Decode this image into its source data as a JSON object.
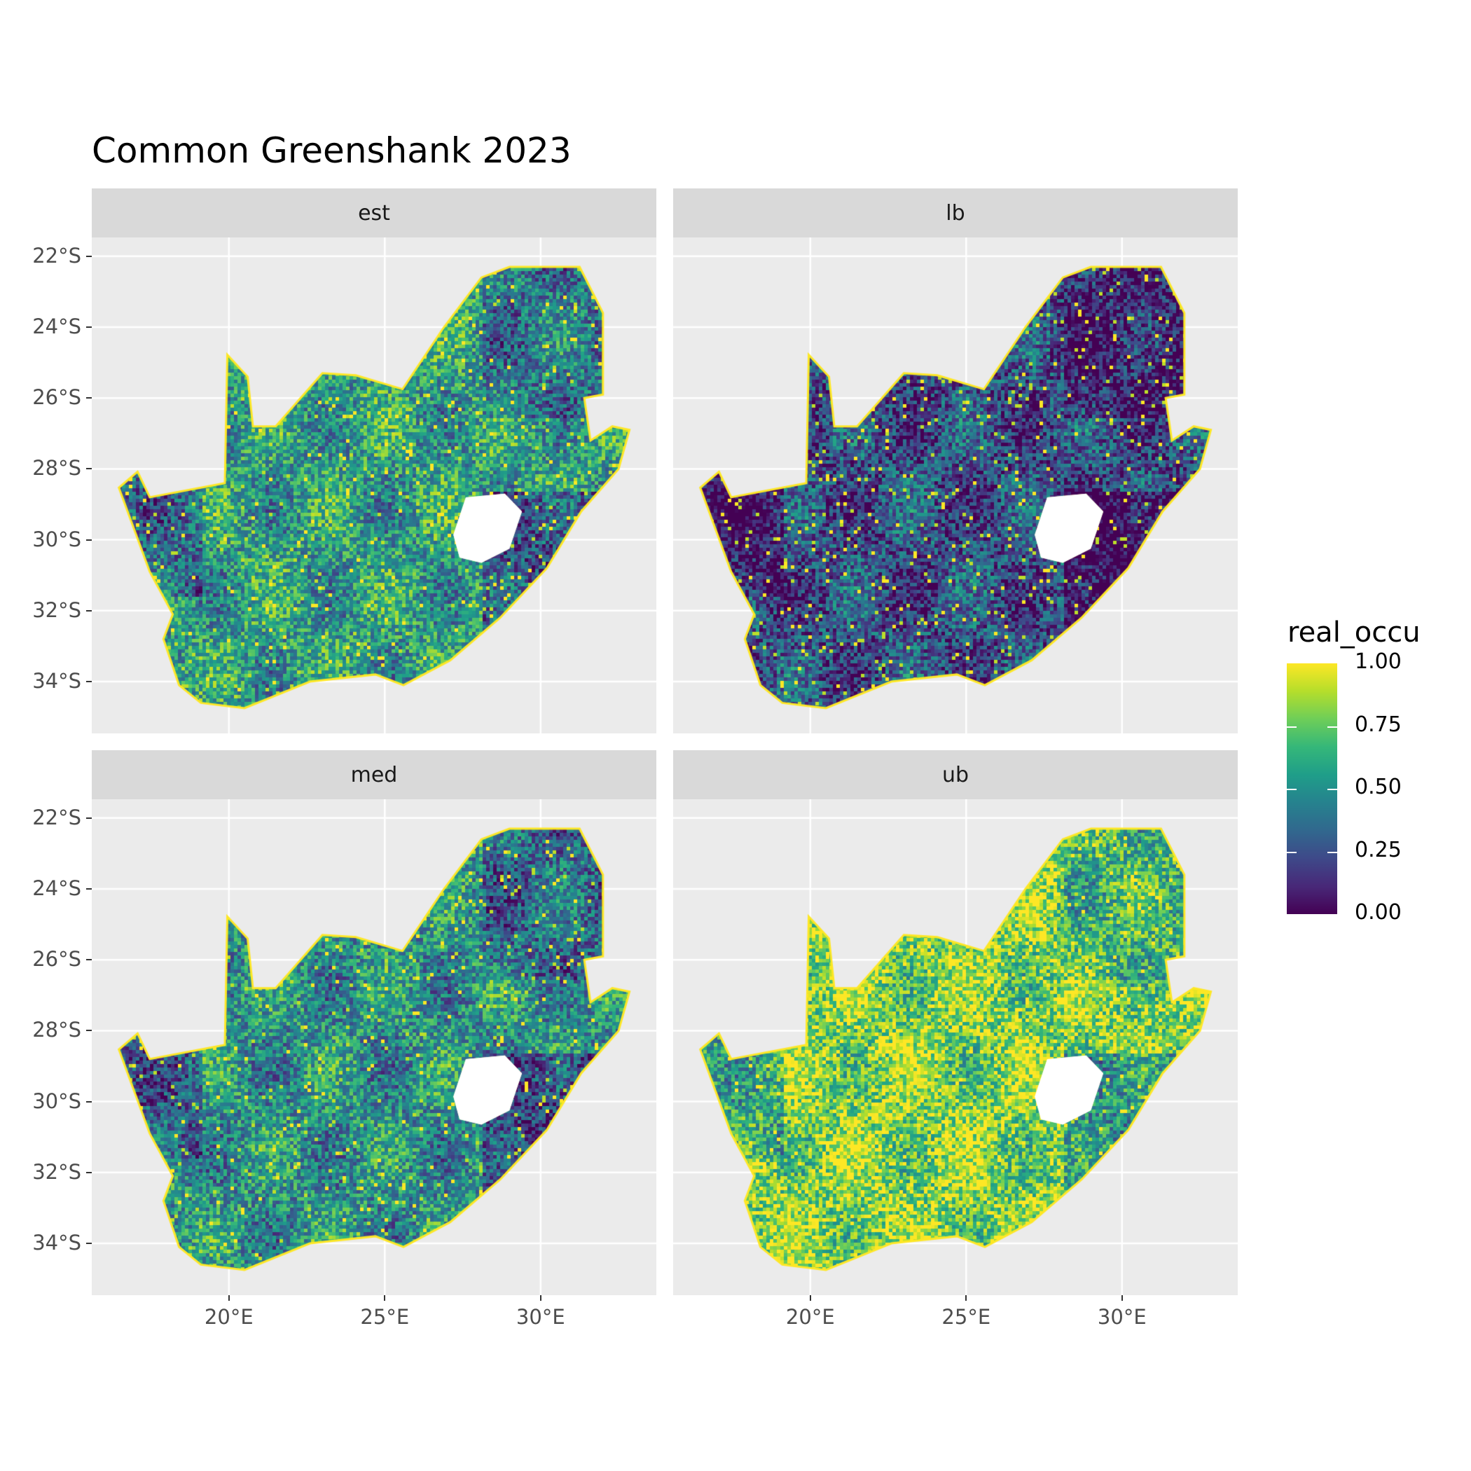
{
  "title": "Common Greenshank 2023",
  "facets": [
    {
      "label": "est",
      "base": 0.55
    },
    {
      "label": "lb",
      "base": 0.25
    },
    {
      "label": "med",
      "base": 0.5
    },
    {
      "label": "ub",
      "base": 0.8
    }
  ],
  "y_ticks": [
    "22°S",
    "24°S",
    "26°S",
    "28°S",
    "30°S",
    "32°S",
    "34°S"
  ],
  "x_ticks": [
    "20°E",
    "25°E",
    "30°E"
  ],
  "legend": {
    "title": "real_occu",
    "labels": [
      "1.00",
      "0.75",
      "0.50",
      "0.25",
      "0.00"
    ],
    "colormap": "viridis",
    "range": [
      0,
      1
    ]
  },
  "colors": {
    "panel_bg": "#ebebeb",
    "strip_bg": "#d9d9d9",
    "low": "#440154",
    "high": "#fde725"
  }
}
